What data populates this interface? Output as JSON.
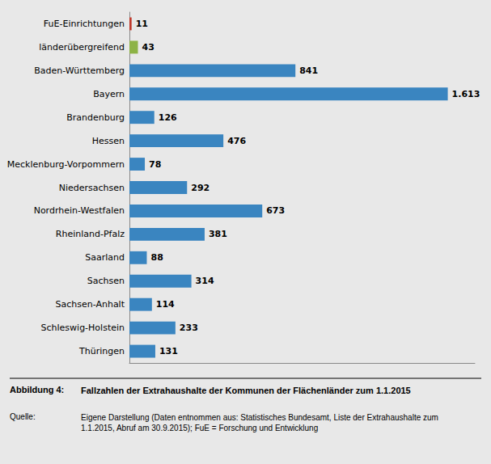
{
  "chart_data": {
    "type": "bar",
    "orientation": "horizontal",
    "title": "Fallzahlen der Extrahaushalte der Kommunen der Flächenländer zum 1.1.2015",
    "annotations": [
      "Abbildung 4:",
      "Quelle:",
      "Eigene Darstellung (Daten entnommen aus: Statistisches Bundesamt, Liste der Extrahaushalte zum\n1.1.2015, Abruf am 30.9.2015); FuE = Forschung und Entwicklung"
    ],
    "categories": [
      "FuE-Einrichtungen",
      "länderübergreifend",
      "Baden-Württemberg",
      "Bayern",
      "Brandenburg",
      "Hessen",
      "Mecklenburg-Vorpommern",
      "Niedersachsen",
      "Nordrhein-Westfalen",
      "Rheinland-Pfalz",
      "Saarland",
      "Sachsen",
      "Sachsen-Anhalt",
      "Schleswig-Holstein",
      "Thüringen"
    ],
    "values": [
      11,
      43,
      841,
      1613,
      126,
      476,
      78,
      292,
      673,
      381,
      88,
      314,
      114,
      233,
      131
    ],
    "value_labels": [
      "11",
      "43",
      "841",
      "1.613",
      "126",
      "476",
      "78",
      "292",
      "673",
      "381",
      "88",
      "314",
      "114",
      "233",
      "131"
    ],
    "colors": [
      "#c0392b",
      "#8db346",
      "#3a85c0",
      "#3a85c0",
      "#3a85c0",
      "#3a85c0",
      "#3a85c0",
      "#3a85c0",
      "#3a85c0",
      "#3a85c0",
      "#3a85c0",
      "#3a85c0",
      "#3a85c0",
      "#3a85c0",
      "#3a85c0"
    ],
    "xlim": [
      0,
      1750
    ],
    "xticks": [],
    "tick_labels": "y",
    "data_labels": true,
    "grid": false
  }
}
